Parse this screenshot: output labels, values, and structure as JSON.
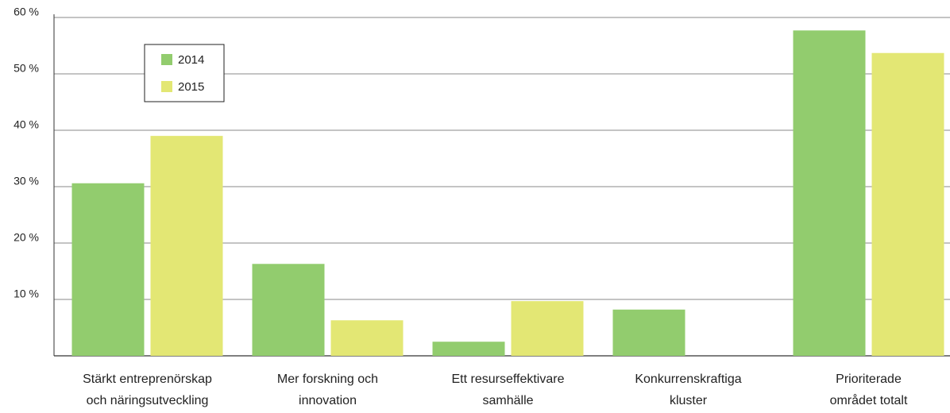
{
  "chart_data": {
    "type": "bar",
    "categories": [
      [
        "Stärkt entreprenörskap",
        "och näringsutveckling"
      ],
      [
        "Mer forskning och",
        "innovation"
      ],
      [
        "Ett resurseffektivare",
        "samhälle"
      ],
      [
        "Konkurrenskraftiga",
        "kluster"
      ],
      [
        "Prioriterade",
        "området totalt"
      ]
    ],
    "series": [
      {
        "name": "2014",
        "color": "#92cc6e",
        "values": [
          30.6,
          16.3,
          2.5,
          8.2,
          57.7
        ]
      },
      {
        "name": "2015",
        "color": "#e3e774",
        "values": [
          39.0,
          6.3,
          9.7,
          null,
          53.7
        ]
      }
    ],
    "ylim": [
      0,
      60
    ],
    "yticks": [
      {
        "value": 10,
        "label": "10 %"
      },
      {
        "value": 20,
        "label": "20 %"
      },
      {
        "value": 30,
        "label": "30 %"
      },
      {
        "value": 40,
        "label": "40 %"
      },
      {
        "value": 50,
        "label": "50 %"
      },
      {
        "value": 60,
        "label": "60 %"
      }
    ],
    "grid": true
  }
}
